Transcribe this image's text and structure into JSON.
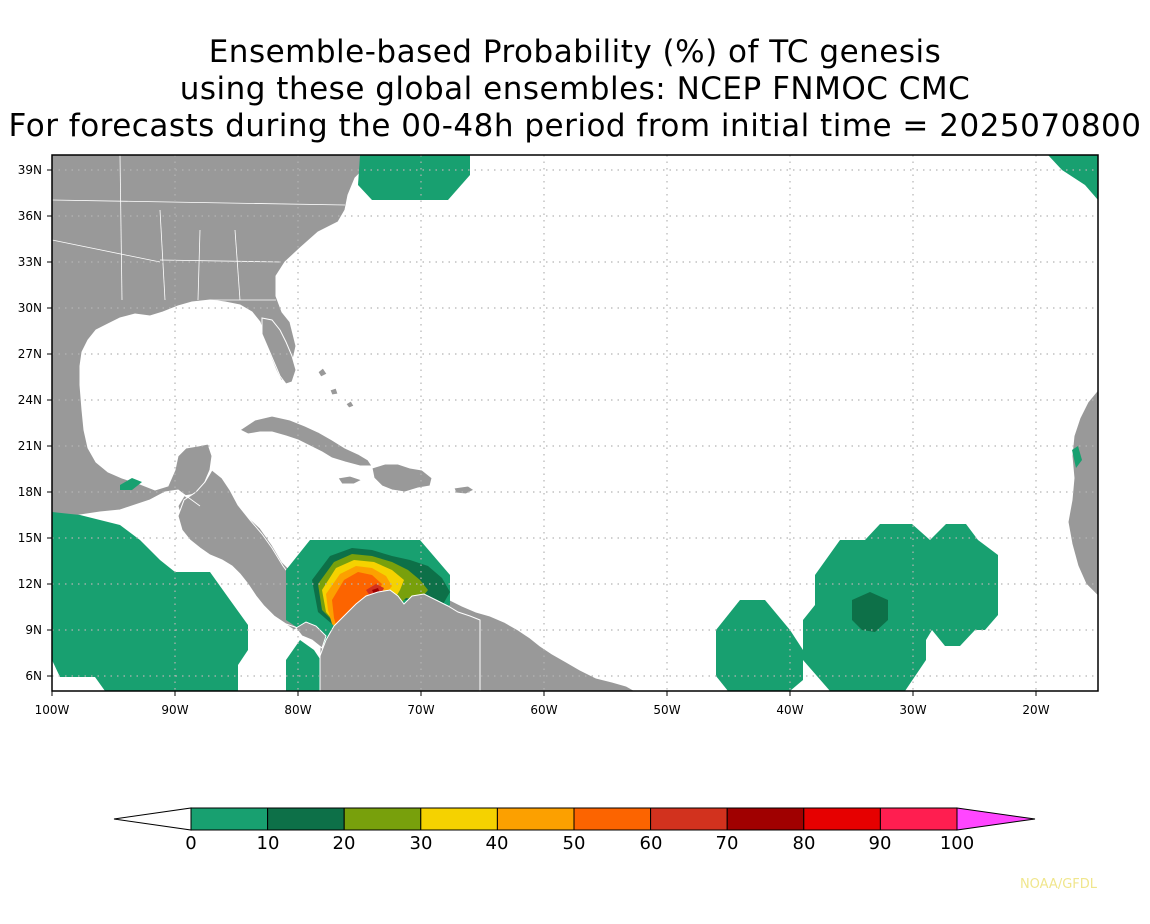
{
  "title": {
    "line1": "Ensemble-based Probability (%) of TC genesis",
    "line2": "using these global ensembles:   NCEP FNMOC CMC",
    "line3": "For forecasts during the 00-48h period from initial time = 2025070800"
  },
  "axes": {
    "lat_labels": [
      "39N",
      "36N",
      "33N",
      "30N",
      "27N",
      "24N",
      "21N",
      "18N",
      "15N",
      "12N",
      "9N",
      "6N"
    ],
    "lon_labels": [
      "100W",
      "90W",
      "80W",
      "70W",
      "60W",
      "50W",
      "40W",
      "30W",
      "20W"
    ]
  },
  "colorbar": {
    "labels": [
      "0",
      "10",
      "20",
      "30",
      "40",
      "50",
      "60",
      "70",
      "80",
      "90",
      "100"
    ],
    "colors": [
      "#18a070",
      "#0d7048",
      "#78a00c",
      "#f5d200",
      "#fca000",
      "#fc6400",
      "#d2321e",
      "#a00000",
      "#e60000",
      "#ff1e50",
      "#ff46ff"
    ]
  },
  "colors": {
    "land": "#999999",
    "ocean": "#ffffff",
    "coast": "#ffffff",
    "grid": "#b4b4b4"
  },
  "credit": "NOAA/GFDL"
}
